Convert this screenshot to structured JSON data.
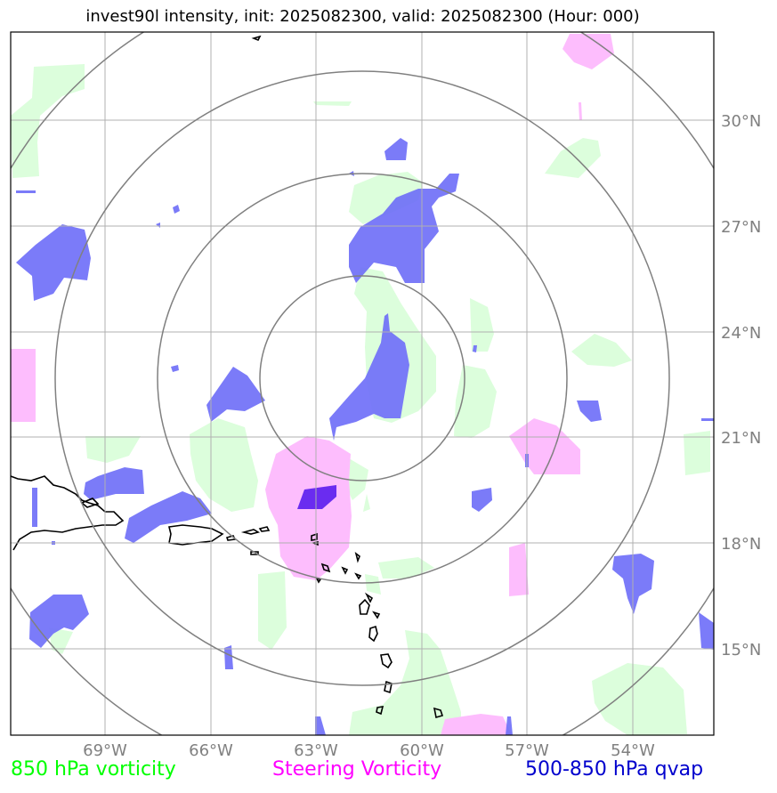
{
  "title": "invest90l intensity, init: 2025082300, valid: 2025082300 (Hour: 000)",
  "lon_labels": [
    "69°W",
    "66°W",
    "63°W",
    "60°W",
    "57°W",
    "54°W"
  ],
  "lat_labels": [
    "30°N",
    "27°N",
    "24°N",
    "21°N",
    "18°N",
    "15°N"
  ],
  "legend": {
    "vort850": "850 hPa vorticity",
    "steering": "Steering Vorticity",
    "qvap": "500-850 hPa qvap"
  },
  "colors": {
    "vort850": "#00ff00",
    "steering": "#ff00ff",
    "qvap": "#0000cd",
    "vort850_fill": "#dcfedc",
    "steering_fill": "#fdbdfd",
    "qvap_fill": "#7070f8",
    "grid": "#b0b0b0",
    "range_rings": "#808080"
  }
}
